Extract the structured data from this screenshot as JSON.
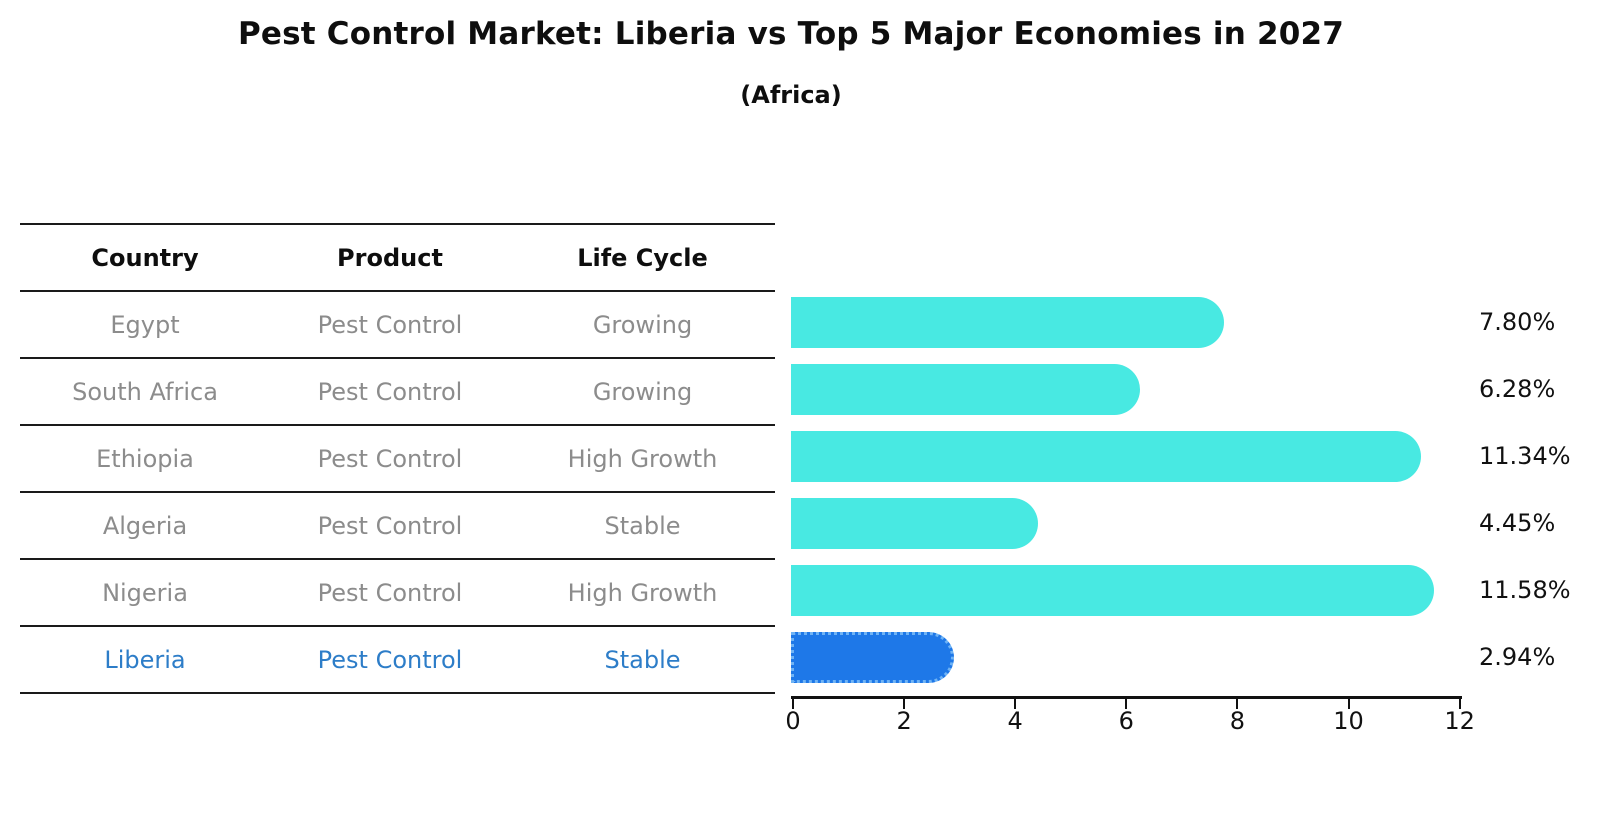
{
  "title": "Pest Control Market: Liberia vs Top 5 Major Economies in 2027",
  "subtitle": "(Africa)",
  "table": {
    "headers": [
      "Country",
      "Product",
      "Life Cycle"
    ],
    "rows": [
      {
        "country": "Egypt",
        "product": "Pest Control",
        "life_cycle": "Growing",
        "highlight": false
      },
      {
        "country": "South Africa",
        "product": "Pest Control",
        "life_cycle": "Growing",
        "highlight": false
      },
      {
        "country": "Ethiopia",
        "product": "Pest Control",
        "life_cycle": "High Growth",
        "highlight": false
      },
      {
        "country": "Algeria",
        "product": "Pest Control",
        "life_cycle": "Stable",
        "highlight": false
      },
      {
        "country": "Nigeria",
        "product": "Pest Control",
        "life_cycle": "High Growth",
        "highlight": false
      },
      {
        "country": "Liberia",
        "product": "Pest Control",
        "life_cycle": "Stable",
        "highlight": true
      }
    ]
  },
  "chart_data": {
    "type": "bar",
    "orientation": "horizontal",
    "title": "Pest Control Market: Liberia vs Top 5 Major Economies in 2027",
    "subtitle": "(Africa)",
    "categories": [
      "Egypt",
      "South Africa",
      "Ethiopia",
      "Algeria",
      "Nigeria",
      "Liberia"
    ],
    "values": [
      7.8,
      6.28,
      11.34,
      4.45,
      11.58,
      2.94
    ],
    "value_labels": [
      "7.80%",
      "6.28%",
      "11.34%",
      "4.45%",
      "11.58%",
      "2.94%"
    ],
    "xlabel": "",
    "ylabel": "",
    "xlim": [
      0,
      12
    ],
    "x_ticks": [
      0,
      2,
      4,
      6,
      8,
      10,
      12
    ],
    "grid": false,
    "legend": "none",
    "bar_color": "#48e9e2",
    "highlight_index": 5,
    "highlight_bar_color": "#1e78e8",
    "highlight_text_color": "#2d7dc8",
    "row_text_color": "#8c8c8c"
  }
}
